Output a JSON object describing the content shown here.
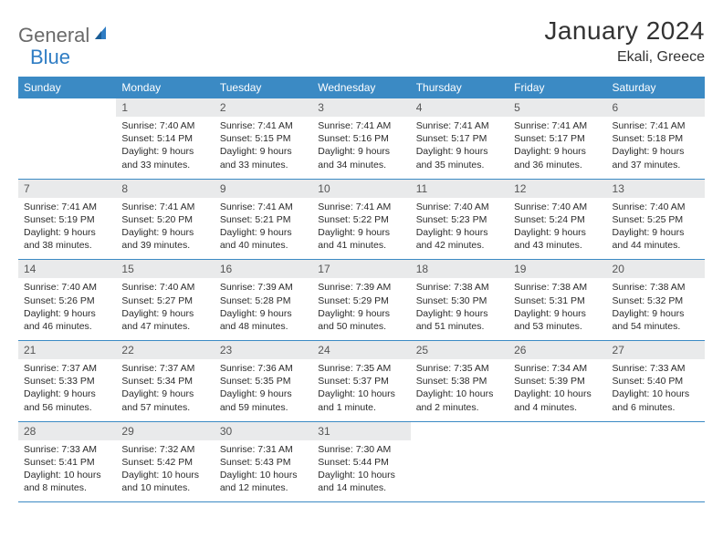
{
  "brand": {
    "word1": "General",
    "word2": "Blue"
  },
  "title": "January 2024",
  "location": "Ekali, Greece",
  "colors": {
    "header_bg": "#3b8ac4",
    "header_text": "#ffffff",
    "daynum_bg": "#e9eaeb",
    "daynum_text": "#555555",
    "border": "#3b8ac4",
    "brand_gray": "#6a6a6a",
    "brand_blue": "#2f7dc4"
  },
  "dow": [
    "Sunday",
    "Monday",
    "Tuesday",
    "Wednesday",
    "Thursday",
    "Friday",
    "Saturday"
  ],
  "weeks": [
    [
      {
        "n": "",
        "sr": "",
        "ss": "",
        "dl": "",
        "empty": true
      },
      {
        "n": "1",
        "sr": "Sunrise: 7:40 AM",
        "ss": "Sunset: 5:14 PM",
        "dl": "Daylight: 9 hours and 33 minutes."
      },
      {
        "n": "2",
        "sr": "Sunrise: 7:41 AM",
        "ss": "Sunset: 5:15 PM",
        "dl": "Daylight: 9 hours and 33 minutes."
      },
      {
        "n": "3",
        "sr": "Sunrise: 7:41 AM",
        "ss": "Sunset: 5:16 PM",
        "dl": "Daylight: 9 hours and 34 minutes."
      },
      {
        "n": "4",
        "sr": "Sunrise: 7:41 AM",
        "ss": "Sunset: 5:17 PM",
        "dl": "Daylight: 9 hours and 35 minutes."
      },
      {
        "n": "5",
        "sr": "Sunrise: 7:41 AM",
        "ss": "Sunset: 5:17 PM",
        "dl": "Daylight: 9 hours and 36 minutes."
      },
      {
        "n": "6",
        "sr": "Sunrise: 7:41 AM",
        "ss": "Sunset: 5:18 PM",
        "dl": "Daylight: 9 hours and 37 minutes."
      }
    ],
    [
      {
        "n": "7",
        "sr": "Sunrise: 7:41 AM",
        "ss": "Sunset: 5:19 PM",
        "dl": "Daylight: 9 hours and 38 minutes."
      },
      {
        "n": "8",
        "sr": "Sunrise: 7:41 AM",
        "ss": "Sunset: 5:20 PM",
        "dl": "Daylight: 9 hours and 39 minutes."
      },
      {
        "n": "9",
        "sr": "Sunrise: 7:41 AM",
        "ss": "Sunset: 5:21 PM",
        "dl": "Daylight: 9 hours and 40 minutes."
      },
      {
        "n": "10",
        "sr": "Sunrise: 7:41 AM",
        "ss": "Sunset: 5:22 PM",
        "dl": "Daylight: 9 hours and 41 minutes."
      },
      {
        "n": "11",
        "sr": "Sunrise: 7:40 AM",
        "ss": "Sunset: 5:23 PM",
        "dl": "Daylight: 9 hours and 42 minutes."
      },
      {
        "n": "12",
        "sr": "Sunrise: 7:40 AM",
        "ss": "Sunset: 5:24 PM",
        "dl": "Daylight: 9 hours and 43 minutes."
      },
      {
        "n": "13",
        "sr": "Sunrise: 7:40 AM",
        "ss": "Sunset: 5:25 PM",
        "dl": "Daylight: 9 hours and 44 minutes."
      }
    ],
    [
      {
        "n": "14",
        "sr": "Sunrise: 7:40 AM",
        "ss": "Sunset: 5:26 PM",
        "dl": "Daylight: 9 hours and 46 minutes."
      },
      {
        "n": "15",
        "sr": "Sunrise: 7:40 AM",
        "ss": "Sunset: 5:27 PM",
        "dl": "Daylight: 9 hours and 47 minutes."
      },
      {
        "n": "16",
        "sr": "Sunrise: 7:39 AM",
        "ss": "Sunset: 5:28 PM",
        "dl": "Daylight: 9 hours and 48 minutes."
      },
      {
        "n": "17",
        "sr": "Sunrise: 7:39 AM",
        "ss": "Sunset: 5:29 PM",
        "dl": "Daylight: 9 hours and 50 minutes."
      },
      {
        "n": "18",
        "sr": "Sunrise: 7:38 AM",
        "ss": "Sunset: 5:30 PM",
        "dl": "Daylight: 9 hours and 51 minutes."
      },
      {
        "n": "19",
        "sr": "Sunrise: 7:38 AM",
        "ss": "Sunset: 5:31 PM",
        "dl": "Daylight: 9 hours and 53 minutes."
      },
      {
        "n": "20",
        "sr": "Sunrise: 7:38 AM",
        "ss": "Sunset: 5:32 PM",
        "dl": "Daylight: 9 hours and 54 minutes."
      }
    ],
    [
      {
        "n": "21",
        "sr": "Sunrise: 7:37 AM",
        "ss": "Sunset: 5:33 PM",
        "dl": "Daylight: 9 hours and 56 minutes."
      },
      {
        "n": "22",
        "sr": "Sunrise: 7:37 AM",
        "ss": "Sunset: 5:34 PM",
        "dl": "Daylight: 9 hours and 57 minutes."
      },
      {
        "n": "23",
        "sr": "Sunrise: 7:36 AM",
        "ss": "Sunset: 5:35 PM",
        "dl": "Daylight: 9 hours and 59 minutes."
      },
      {
        "n": "24",
        "sr": "Sunrise: 7:35 AM",
        "ss": "Sunset: 5:37 PM",
        "dl": "Daylight: 10 hours and 1 minute."
      },
      {
        "n": "25",
        "sr": "Sunrise: 7:35 AM",
        "ss": "Sunset: 5:38 PM",
        "dl": "Daylight: 10 hours and 2 minutes."
      },
      {
        "n": "26",
        "sr": "Sunrise: 7:34 AM",
        "ss": "Sunset: 5:39 PM",
        "dl": "Daylight: 10 hours and 4 minutes."
      },
      {
        "n": "27",
        "sr": "Sunrise: 7:33 AM",
        "ss": "Sunset: 5:40 PM",
        "dl": "Daylight: 10 hours and 6 minutes."
      }
    ],
    [
      {
        "n": "28",
        "sr": "Sunrise: 7:33 AM",
        "ss": "Sunset: 5:41 PM",
        "dl": "Daylight: 10 hours and 8 minutes."
      },
      {
        "n": "29",
        "sr": "Sunrise: 7:32 AM",
        "ss": "Sunset: 5:42 PM",
        "dl": "Daylight: 10 hours and 10 minutes."
      },
      {
        "n": "30",
        "sr": "Sunrise: 7:31 AM",
        "ss": "Sunset: 5:43 PM",
        "dl": "Daylight: 10 hours and 12 minutes."
      },
      {
        "n": "31",
        "sr": "Sunrise: 7:30 AM",
        "ss": "Sunset: 5:44 PM",
        "dl": "Daylight: 10 hours and 14 minutes."
      },
      {
        "n": "",
        "sr": "",
        "ss": "",
        "dl": "",
        "empty": true
      },
      {
        "n": "",
        "sr": "",
        "ss": "",
        "dl": "",
        "empty": true
      },
      {
        "n": "",
        "sr": "",
        "ss": "",
        "dl": "",
        "empty": true
      }
    ]
  ]
}
